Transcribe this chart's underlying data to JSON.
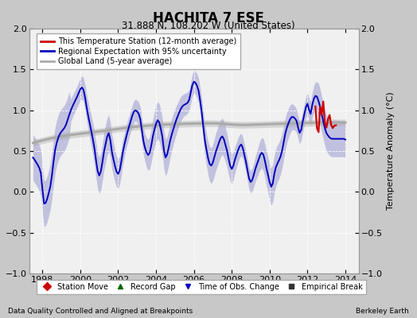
{
  "title": "HACHITA 7 ESE",
  "subtitle": "31.888 N, 108.202 W (United States)",
  "xlabel_bottom": "Data Quality Controlled and Aligned at Breakpoints",
  "xlabel_right": "Berkeley Earth",
  "ylabel": "Temperature Anomaly (°C)",
  "xlim": [
    1997.3,
    2014.7
  ],
  "ylim": [
    -1.0,
    2.0
  ],
  "yticks": [
    -1.0,
    -0.5,
    0.0,
    0.5,
    1.0,
    1.5,
    2.0
  ],
  "xticks": [
    1998,
    2000,
    2002,
    2004,
    2006,
    2008,
    2010,
    2012,
    2014
  ],
  "bg_color": "#c8c8c8",
  "plot_bg_color": "#f0f0f0",
  "regional_color": "#0000bb",
  "regional_fill_color": "#8888cc",
  "station_color": "#cc0000",
  "global_color": "#aaaaaa",
  "legend_items": [
    {
      "label": "This Temperature Station (12-month average)",
      "color": "#cc0000"
    },
    {
      "label": "Regional Expectation with 95% uncertainty",
      "color": "#0000bb"
    },
    {
      "label": "Global Land (5-year average)",
      "color": "#aaaaaa"
    }
  ],
  "bottom_legend": [
    {
      "marker": "D",
      "color": "#cc0000",
      "label": "Station Move"
    },
    {
      "marker": "^",
      "color": "#006600",
      "label": "Record Gap"
    },
    {
      "marker": "v",
      "color": "#0000bb",
      "label": "Time of Obs. Change"
    },
    {
      "marker": "s",
      "color": "#333333",
      "label": "Empirical Break"
    }
  ]
}
